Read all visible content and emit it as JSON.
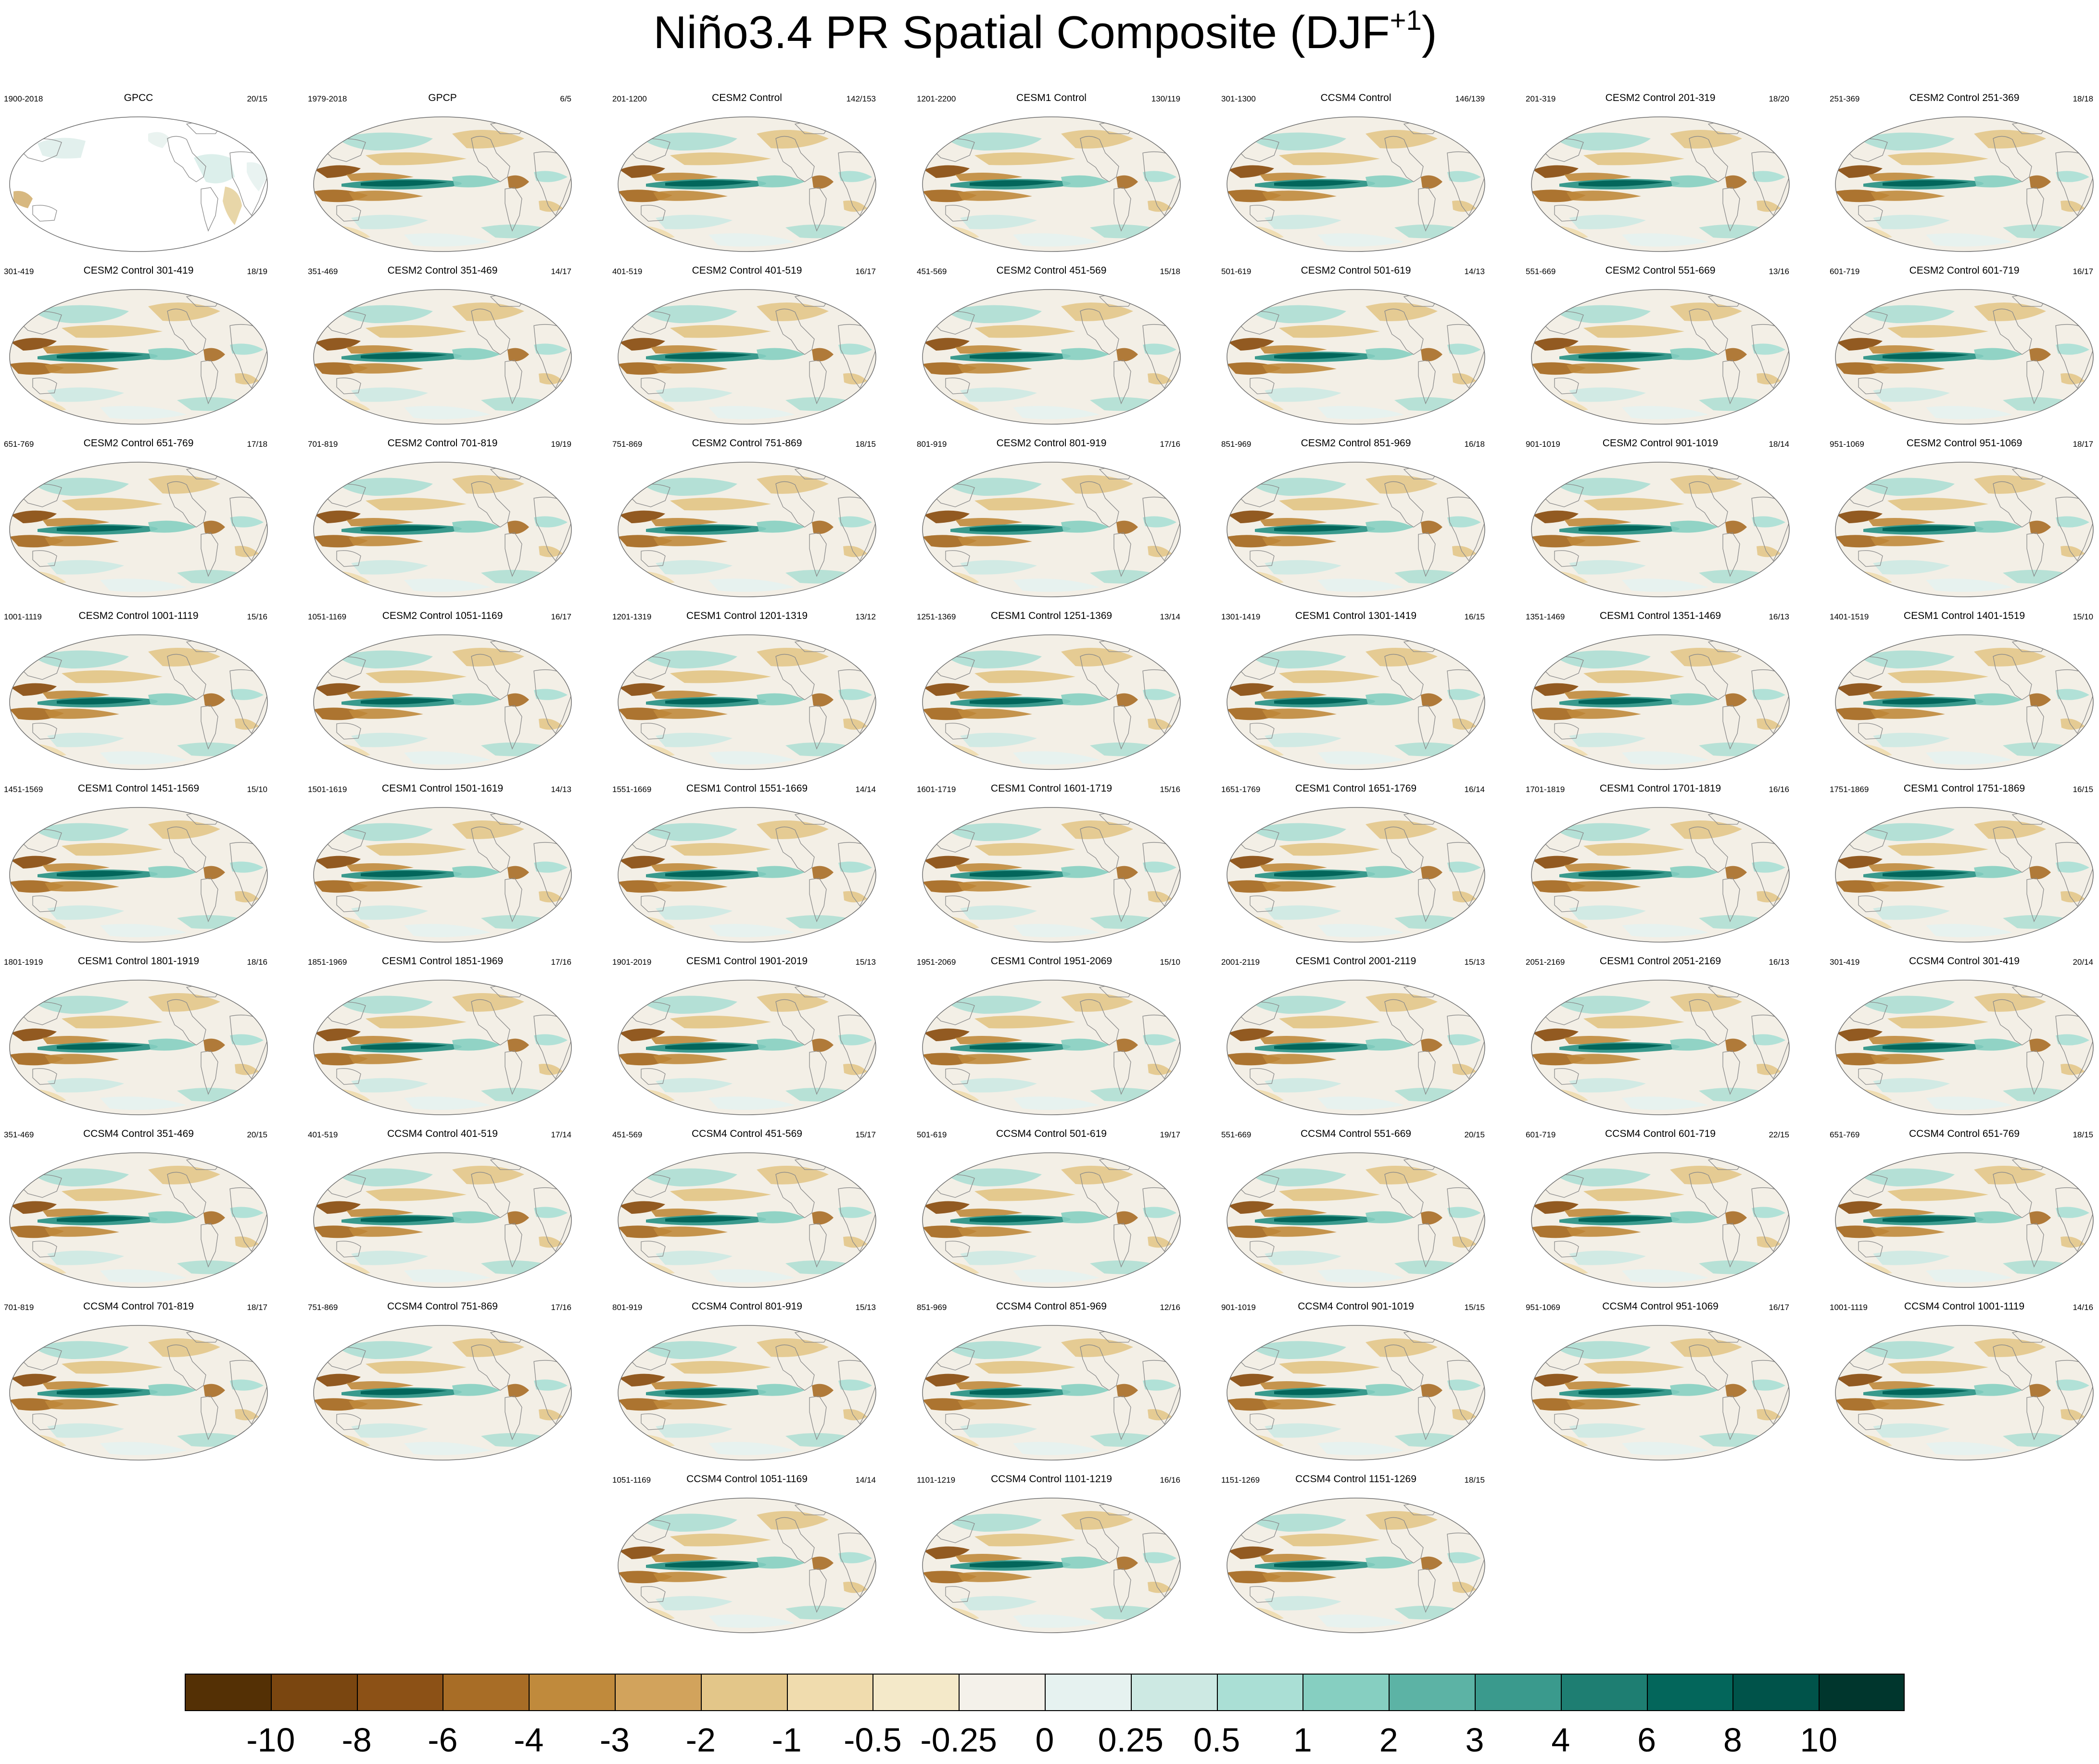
{
  "chart_data": {
    "type": "map-panels",
    "title": "Niño3.4 PR Spatial Composite (DJF",
    "title_superscript": "+1",
    "title_close": ")",
    "layout": {
      "columns": 7
    },
    "panels": [
      {
        "name": "GPCC",
        "years": "1900-2018",
        "counts": "20/15",
        "observed": true,
        "land_only": true
      },
      {
        "name": "GPCP",
        "years": "1979-2018",
        "counts": "6/5",
        "observed": true
      },
      {
        "name": "CESM2 Control",
        "years": "201-1200",
        "counts": "142/153"
      },
      {
        "name": "CESM1 Control",
        "years": "1201-2200",
        "counts": "130/119"
      },
      {
        "name": "CCSM4 Control",
        "years": "301-1300",
        "counts": "146/139"
      },
      {
        "name": "CESM2 Control 201-319",
        "years": "201-319",
        "counts": "18/20"
      },
      {
        "name": "CESM2 Control 251-369",
        "years": "251-369",
        "counts": "18/18"
      },
      {
        "name": "CESM2 Control 301-419",
        "years": "301-419",
        "counts": "18/19"
      },
      {
        "name": "CESM2 Control 351-469",
        "years": "351-469",
        "counts": "14/17"
      },
      {
        "name": "CESM2 Control 401-519",
        "years": "401-519",
        "counts": "16/17"
      },
      {
        "name": "CESM2 Control 451-569",
        "years": "451-569",
        "counts": "15/18"
      },
      {
        "name": "CESM2 Control 501-619",
        "years": "501-619",
        "counts": "14/13"
      },
      {
        "name": "CESM2 Control 551-669",
        "years": "551-669",
        "counts": "13/16"
      },
      {
        "name": "CESM2 Control 601-719",
        "years": "601-719",
        "counts": "16/17"
      },
      {
        "name": "CESM2 Control 651-769",
        "years": "651-769",
        "counts": "17/18"
      },
      {
        "name": "CESM2 Control 701-819",
        "years": "701-819",
        "counts": "19/19"
      },
      {
        "name": "CESM2 Control 751-869",
        "years": "751-869",
        "counts": "18/15"
      },
      {
        "name": "CESM2 Control 801-919",
        "years": "801-919",
        "counts": "17/16"
      },
      {
        "name": "CESM2 Control 851-969",
        "years": "851-969",
        "counts": "16/18"
      },
      {
        "name": "CESM2 Control 901-1019",
        "years": "901-1019",
        "counts": "18/14"
      },
      {
        "name": "CESM2 Control 951-1069",
        "years": "951-1069",
        "counts": "18/17"
      },
      {
        "name": "CESM2 Control 1001-1119",
        "years": "1001-1119",
        "counts": "15/16"
      },
      {
        "name": "CESM2 Control 1051-1169",
        "years": "1051-1169",
        "counts": "16/17"
      },
      {
        "name": "CESM1 Control 1201-1319",
        "years": "1201-1319",
        "counts": "13/12"
      },
      {
        "name": "CESM1 Control 1251-1369",
        "years": "1251-1369",
        "counts": "13/14"
      },
      {
        "name": "CESM1 Control 1301-1419",
        "years": "1301-1419",
        "counts": "16/15"
      },
      {
        "name": "CESM1 Control 1351-1469",
        "years": "1351-1469",
        "counts": "16/13"
      },
      {
        "name": "CESM1 Control 1401-1519",
        "years": "1401-1519",
        "counts": "15/10"
      },
      {
        "name": "CESM1 Control 1451-1569",
        "years": "1451-1569",
        "counts": "15/10"
      },
      {
        "name": "CESM1 Control 1501-1619",
        "years": "1501-1619",
        "counts": "14/13"
      },
      {
        "name": "CESM1 Control 1551-1669",
        "years": "1551-1669",
        "counts": "14/14"
      },
      {
        "name": "CESM1 Control 1601-1719",
        "years": "1601-1719",
        "counts": "15/16"
      },
      {
        "name": "CESM1 Control 1651-1769",
        "years": "1651-1769",
        "counts": "16/14"
      },
      {
        "name": "CESM1 Control 1701-1819",
        "years": "1701-1819",
        "counts": "16/16"
      },
      {
        "name": "CESM1 Control 1751-1869",
        "years": "1751-1869",
        "counts": "16/15"
      },
      {
        "name": "CESM1 Control 1801-1919",
        "years": "1801-1919",
        "counts": "18/16"
      },
      {
        "name": "CESM1 Control 1851-1969",
        "years": "1851-1969",
        "counts": "17/16"
      },
      {
        "name": "CESM1 Control 1901-2019",
        "years": "1901-2019",
        "counts": "15/13"
      },
      {
        "name": "CESM1 Control 1951-2069",
        "years": "1951-2069",
        "counts": "15/10"
      },
      {
        "name": "CESM1 Control 2001-2119",
        "years": "2001-2119",
        "counts": "15/13"
      },
      {
        "name": "CESM1 Control 2051-2169",
        "years": "2051-2169",
        "counts": "16/13"
      },
      {
        "name": "CCSM4 Control 301-419",
        "years": "301-419",
        "counts": "20/14"
      },
      {
        "name": "CCSM4 Control 351-469",
        "years": "351-469",
        "counts": "20/15"
      },
      {
        "name": "CCSM4 Control 401-519",
        "years": "401-519",
        "counts": "17/14"
      },
      {
        "name": "CCSM4 Control 451-569",
        "years": "451-569",
        "counts": "15/17"
      },
      {
        "name": "CCSM4 Control 501-619",
        "years": "501-619",
        "counts": "19/17"
      },
      {
        "name": "CCSM4 Control 551-669",
        "years": "551-669",
        "counts": "20/15"
      },
      {
        "name": "CCSM4 Control 601-719",
        "years": "601-719",
        "counts": "22/15"
      },
      {
        "name": "CCSM4 Control 651-769",
        "years": "651-769",
        "counts": "18/15"
      },
      {
        "name": "CCSM4 Control 701-819",
        "years": "701-819",
        "counts": "18/17"
      },
      {
        "name": "CCSM4 Control 751-869",
        "years": "751-869",
        "counts": "17/16"
      },
      {
        "name": "CCSM4 Control 801-919",
        "years": "801-919",
        "counts": "15/13"
      },
      {
        "name": "CCSM4 Control 851-969",
        "years": "851-969",
        "counts": "12/16"
      },
      {
        "name": "CCSM4 Control 901-1019",
        "years": "901-1019",
        "counts": "15/15"
      },
      {
        "name": "CCSM4 Control 951-1069",
        "years": "951-1069",
        "counts": "16/17"
      },
      {
        "name": "CCSM4 Control 1001-1119",
        "years": "1001-1119",
        "counts": "14/16"
      },
      {
        "name": "CCSM4 Control 1051-1169",
        "years": "1051-1169",
        "counts": "14/14"
      },
      {
        "name": "CCSM4 Control 1101-1219",
        "years": "1101-1219",
        "counts": "16/16"
      },
      {
        "name": "CCSM4 Control 1151-1269",
        "years": "1151-1269",
        "counts": "18/15"
      }
    ],
    "colorbar": {
      "labels": [
        "-10",
        "-8",
        "-6",
        "-4",
        "-3",
        "-2",
        "-1",
        "-0.5",
        "-0.25",
        "0",
        "0.25",
        "0.5",
        "1",
        "2",
        "3",
        "4",
        "6",
        "8",
        "10"
      ],
      "colors": [
        "#543005",
        "#7a4610",
        "#8c5116",
        "#a86d26",
        "#c08a3c",
        "#d2a35c",
        "#e3c689",
        "#f0dcae",
        "#f4e9c9",
        "#f4f1ea",
        "#e6f2f0",
        "#cde9e3",
        "#aadfd5",
        "#86cfc1",
        "#5cb3a5",
        "#3a9a8d",
        "#1e7e72",
        "#03665b",
        "#00534a",
        "#00362d"
      ]
    }
  }
}
